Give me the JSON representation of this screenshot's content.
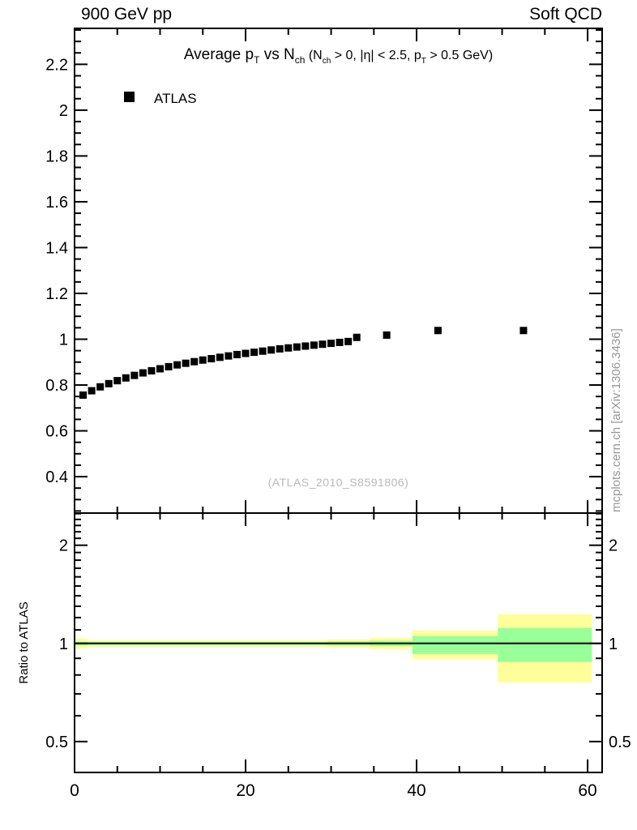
{
  "header": {
    "left": "900 GeV pp",
    "right": "Soft QCD"
  },
  "legend": [
    {
      "marker": "filled-square",
      "color": "#000000",
      "label": "ATLAS"
    }
  ],
  "watermark": "(ATLAS_2010_S8591806)",
  "side_note": "mcplots.cern.ch [arXiv:1306.3436]",
  "colors": {
    "band_yellow": "#ffff99",
    "band_green": "#99ff99",
    "marker": "#000000",
    "frame": "#000000",
    "watermark_gray": "#b9b9b9",
    "side_note_gray": "#989898"
  },
  "chart_data": {
    "type": "scatter",
    "title_segments": [
      {
        "text": "Average p",
        "size": "big",
        "sub": false
      },
      {
        "text": "T",
        "size": "big",
        "sub": true
      },
      {
        "text": " vs N",
        "size": "big",
        "sub": false
      },
      {
        "text": "ch",
        "size": "big",
        "sub": true
      },
      {
        "text": " (N",
        "size": "small",
        "sub": false
      },
      {
        "text": "ch",
        "size": "small",
        "sub": true
      },
      {
        "text": " > 0, |η| < 2.5, p",
        "size": "small",
        "sub": false
      },
      {
        "text": "T",
        "size": "small",
        "sub": true
      },
      {
        "text": " > 0.5 GeV)",
        "size": "small",
        "sub": false
      }
    ],
    "xaxis": {
      "lim": [
        0,
        61.7
      ],
      "major_ticks": [
        0,
        20,
        40,
        60
      ],
      "major_labels": [
        "0",
        "20",
        "40",
        "60"
      ],
      "minor_step": 5
    },
    "main_panel": {
      "scale": "linear",
      "ylim": [
        0.241,
        2.357
      ],
      "ymajor_ticks": [
        0.4,
        0.6,
        0.8,
        1.0,
        1.2,
        1.4,
        1.6,
        1.8,
        2.0,
        2.2
      ],
      "ymajor_labels": [
        "0.4",
        "0.6",
        "0.8",
        "1",
        "1.2",
        "1.4",
        "1.6",
        "1.8",
        "2",
        "2.2"
      ],
      "yminor_step": 0.05,
      "series": [
        {
          "name": "ATLAS",
          "marker": "filled-square",
          "color": "#000000",
          "points": [
            [
              1,
              0.756
            ],
            [
              2,
              0.775
            ],
            [
              3,
              0.792
            ],
            [
              4,
              0.806
            ],
            [
              5,
              0.819
            ],
            [
              6,
              0.831
            ],
            [
              7,
              0.842
            ],
            [
              8,
              0.853
            ],
            [
              9,
              0.862
            ],
            [
              10,
              0.871
            ],
            [
              11,
              0.88
            ],
            [
              12,
              0.888
            ],
            [
              13,
              0.895
            ],
            [
              14,
              0.902
            ],
            [
              15,
              0.909
            ],
            [
              16,
              0.915
            ],
            [
              17,
              0.921
            ],
            [
              18,
              0.927
            ],
            [
              19,
              0.933
            ],
            [
              20,
              0.938
            ],
            [
              21,
              0.943
            ],
            [
              22,
              0.948
            ],
            [
              23,
              0.953
            ],
            [
              24,
              0.958
            ],
            [
              25,
              0.962
            ],
            [
              26,
              0.966
            ],
            [
              27,
              0.97
            ],
            [
              28,
              0.974
            ],
            [
              29,
              0.978
            ],
            [
              30,
              0.982
            ],
            [
              31,
              0.986
            ],
            [
              32,
              0.99
            ],
            [
              33,
              1.008
            ],
            [
              36.5,
              1.018
            ],
            [
              42.5,
              1.038
            ],
            [
              52.5,
              1.038
            ]
          ]
        }
      ]
    },
    "ratio_panel": {
      "ylabel": "Ratio to ATLAS",
      "scale": "log",
      "ylim": [
        0.402,
        2.51
      ],
      "ymajor_ticks": [
        0.5,
        1,
        2
      ],
      "ymajor_labels": [
        "0.5",
        "1",
        "2"
      ],
      "yminor_ticks": [
        0.6,
        0.7,
        0.8,
        0.9,
        1.1,
        1.2,
        1.3,
        1.4,
        1.5,
        1.6,
        1.7,
        1.8,
        1.9,
        2.1,
        2.2,
        2.3,
        2.4,
        2.5
      ],
      "reference_line": 1,
      "bands": [
        {
          "x": [
            0,
            1.5
          ],
          "yellow": [
            0.965,
            1.036
          ],
          "green": [
            0.988,
            1.012
          ]
        },
        {
          "x": [
            1.5,
            29.5
          ],
          "yellow": [
            0.977,
            1.023
          ],
          "green": [
            0.99,
            1.01
          ]
        },
        {
          "x": [
            29.5,
            34.5
          ],
          "yellow": [
            0.972,
            1.029
          ],
          "green": [
            0.986,
            1.014
          ]
        },
        {
          "x": [
            34.5,
            39.5
          ],
          "yellow": [
            0.962,
            1.039
          ],
          "green": [
            0.981,
            1.019
          ]
        },
        {
          "x": [
            39.5,
            49.5
          ],
          "yellow": [
            0.897,
            1.096
          ],
          "green": [
            0.928,
            1.053
          ]
        },
        {
          "x": [
            49.5,
            60.5
          ],
          "yellow": [
            0.76,
            1.229
          ],
          "green": [
            0.877,
            1.115
          ]
        }
      ]
    }
  }
}
